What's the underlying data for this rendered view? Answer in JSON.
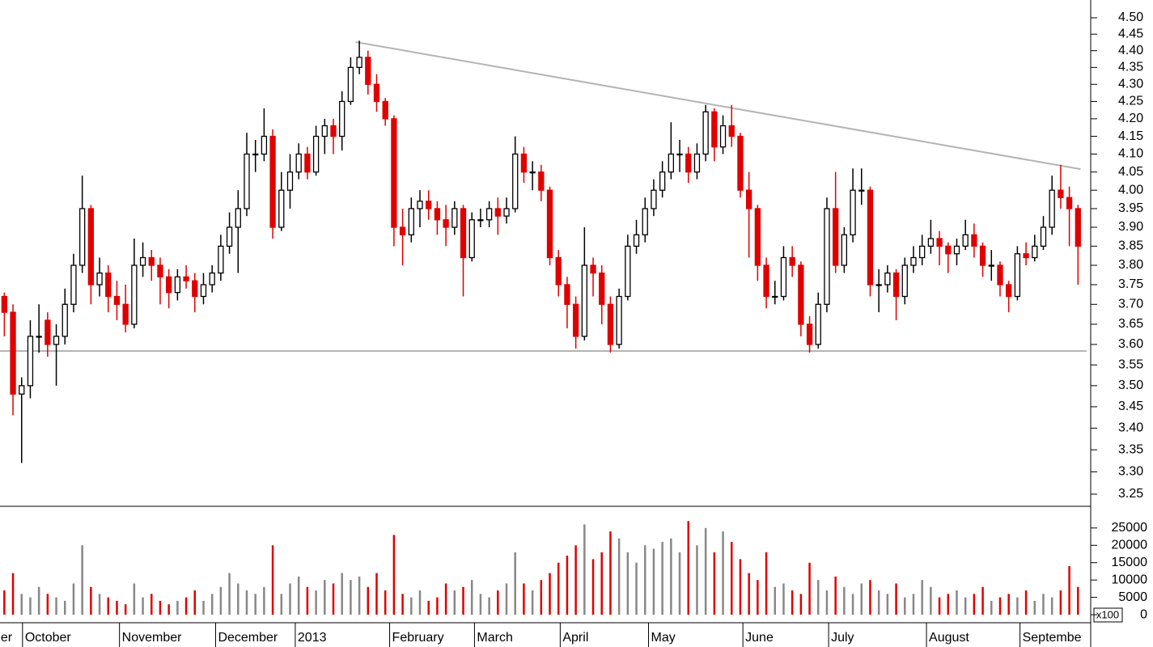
{
  "chart_data": {
    "type": "candlestick",
    "log_y": true,
    "up_color": "#000000",
    "down_color": "#e00000",
    "volume_up_color": "#888888",
    "trend_color": "#b4b4b4",
    "xlim": [
      -0.5,
      125
    ],
    "xticks": [
      {
        "value": -0.7,
        "label": "er"
      },
      {
        "value": 2.1,
        "label": "October"
      },
      {
        "value": 13.3,
        "label": "November"
      },
      {
        "value": 24.4,
        "label": "December"
      },
      {
        "value": 33.6,
        "label": "2013"
      },
      {
        "value": 44.5,
        "label": "February"
      },
      {
        "value": 54.3,
        "label": "March"
      },
      {
        "value": 64.2,
        "label": "April"
      },
      {
        "value": 74.4,
        "label": "May"
      },
      {
        "value": 85.3,
        "label": "June"
      },
      {
        "value": 95.2,
        "label": "July"
      },
      {
        "value": 106.5,
        "label": "August"
      },
      {
        "value": 117.3,
        "label": "Septembe"
      }
    ],
    "ylim": [
      3.225,
      4.555
    ],
    "yticks": [
      {
        "value": 3.25,
        "label": "3.25"
      },
      {
        "value": 3.3,
        "label": "3.30"
      },
      {
        "value": 3.35,
        "label": "3.35"
      },
      {
        "value": 3.4,
        "label": "3.40"
      },
      {
        "value": 3.45,
        "label": "3.45"
      },
      {
        "value": 3.5,
        "label": "3.50"
      },
      {
        "value": 3.55,
        "label": "3.55"
      },
      {
        "value": 3.6,
        "label": "3.60"
      },
      {
        "value": 3.65,
        "label": "3.65"
      },
      {
        "value": 3.7,
        "label": "3.70"
      },
      {
        "value": 3.75,
        "label": "3.75"
      },
      {
        "value": 3.8,
        "label": "3.80"
      },
      {
        "value": 3.85,
        "label": "3.85"
      },
      {
        "value": 3.9,
        "label": "3.90"
      },
      {
        "value": 3.95,
        "label": "3.95"
      },
      {
        "value": 4.0,
        "label": "4.00"
      },
      {
        "value": 4.05,
        "label": "4.05"
      },
      {
        "value": 4.1,
        "label": "4.10"
      },
      {
        "value": 4.15,
        "label": "4.15"
      },
      {
        "value": 4.2,
        "label": "4.20"
      },
      {
        "value": 4.25,
        "label": "4.25"
      },
      {
        "value": 4.3,
        "label": "4.30"
      },
      {
        "value": 4.35,
        "label": "4.35"
      },
      {
        "value": 4.4,
        "label": "4.40"
      },
      {
        "value": 4.45,
        "label": "4.45"
      },
      {
        "value": 4.5,
        "label": "4.50"
      }
    ],
    "volume_ylim": [
      -2315,
      31019
    ],
    "volume_yticks": [
      0,
      5000,
      10000,
      15000,
      20000,
      25000
    ],
    "volume_unit": "x100",
    "trendlines": [
      {
        "x": [
          40.6,
          124.3
        ],
        "y": [
          4.426,
          4.058
        ]
      },
      {
        "x": [
          -0.5,
          125
        ],
        "y": [
          3.584,
          3.584
        ]
      }
    ],
    "ohlc": [
      [
        3.72,
        3.73,
        3.62,
        3.68
      ],
      [
        3.68,
        3.7,
        3.43,
        3.48
      ],
      [
        3.48,
        3.52,
        3.32,
        3.5
      ],
      [
        3.5,
        3.66,
        3.47,
        3.62
      ],
      [
        3.62,
        3.7,
        3.58,
        3.62
      ],
      [
        3.66,
        3.68,
        3.57,
        3.6
      ],
      [
        3.6,
        3.65,
        3.5,
        3.62
      ],
      [
        3.62,
        3.74,
        3.6,
        3.7
      ],
      [
        3.7,
        3.83,
        3.68,
        3.8
      ],
      [
        3.8,
        4.04,
        3.78,
        3.95
      ],
      [
        3.95,
        3.96,
        3.7,
        3.75
      ],
      [
        3.75,
        3.82,
        3.72,
        3.78
      ],
      [
        3.78,
        3.8,
        3.68,
        3.72
      ],
      [
        3.72,
        3.76,
        3.66,
        3.7
      ],
      [
        3.7,
        3.75,
        3.63,
        3.65
      ],
      [
        3.65,
        3.87,
        3.64,
        3.8
      ],
      [
        3.8,
        3.86,
        3.77,
        3.82
      ],
      [
        3.82,
        3.84,
        3.76,
        3.8
      ],
      [
        3.8,
        3.82,
        3.7,
        3.77
      ],
      [
        3.77,
        3.79,
        3.69,
        3.73
      ],
      [
        3.73,
        3.79,
        3.71,
        3.77
      ],
      [
        3.77,
        3.8,
        3.74,
        3.76
      ],
      [
        3.76,
        3.78,
        3.68,
        3.72
      ],
      [
        3.72,
        3.78,
        3.7,
        3.75
      ],
      [
        3.75,
        3.8,
        3.73,
        3.78
      ],
      [
        3.78,
        3.88,
        3.76,
        3.85
      ],
      [
        3.85,
        3.94,
        3.83,
        3.9
      ],
      [
        3.9,
        4.0,
        3.78,
        3.95
      ],
      [
        3.95,
        4.16,
        3.93,
        4.1
      ],
      [
        4.1,
        4.14,
        4.05,
        4.1
      ],
      [
        4.1,
        4.23,
        4.08,
        4.15
      ],
      [
        4.15,
        4.17,
        3.87,
        3.9
      ],
      [
        3.9,
        4.05,
        3.89,
        4.0
      ],
      [
        4.0,
        4.1,
        3.95,
        4.05
      ],
      [
        4.05,
        4.13,
        4.03,
        4.1
      ],
      [
        4.1,
        4.12,
        4.03,
        4.05
      ],
      [
        4.05,
        4.18,
        4.04,
        4.15
      ],
      [
        4.15,
        4.2,
        4.1,
        4.18
      ],
      [
        4.18,
        4.2,
        4.1,
        4.15
      ],
      [
        4.15,
        4.28,
        4.11,
        4.25
      ],
      [
        4.25,
        4.38,
        4.24,
        4.35
      ],
      [
        4.35,
        4.43,
        4.33,
        4.38
      ],
      [
        4.38,
        4.4,
        4.27,
        4.3
      ],
      [
        4.3,
        4.33,
        4.22,
        4.25
      ],
      [
        4.25,
        4.26,
        4.18,
        4.2
      ],
      [
        4.2,
        4.21,
        3.85,
        3.9
      ],
      [
        3.9,
        3.95,
        3.8,
        3.88
      ],
      [
        3.88,
        3.98,
        3.86,
        3.95
      ],
      [
        3.95,
        4.0,
        3.9,
        3.97
      ],
      [
        3.97,
        4.0,
        3.92,
        3.95
      ],
      [
        3.95,
        3.97,
        3.88,
        3.92
      ],
      [
        3.92,
        3.96,
        3.85,
        3.9
      ],
      [
        3.9,
        3.97,
        3.88,
        3.95
      ],
      [
        3.95,
        3.96,
        3.72,
        3.82
      ],
      [
        3.82,
        3.94,
        3.81,
        3.92
      ],
      [
        3.92,
        3.95,
        3.9,
        3.92
      ],
      [
        3.92,
        3.97,
        3.9,
        3.95
      ],
      [
        3.95,
        3.98,
        3.88,
        3.93
      ],
      [
        3.93,
        3.98,
        3.91,
        3.95
      ],
      [
        3.95,
        4.15,
        3.94,
        4.1
      ],
      [
        4.1,
        4.12,
        4.02,
        4.05
      ],
      [
        4.05,
        4.08,
        4.0,
        4.05
      ],
      [
        4.05,
        4.07,
        3.97,
        4.0
      ],
      [
        4.0,
        4.01,
        3.8,
        3.82
      ],
      [
        3.82,
        3.84,
        3.72,
        3.75
      ],
      [
        3.75,
        3.77,
        3.64,
        3.7
      ],
      [
        3.7,
        3.72,
        3.59,
        3.62
      ],
      [
        3.62,
        3.9,
        3.61,
        3.8
      ],
      [
        3.8,
        3.82,
        3.72,
        3.78
      ],
      [
        3.78,
        3.8,
        3.65,
        3.7
      ],
      [
        3.7,
        3.72,
        3.58,
        3.6
      ],
      [
        3.6,
        3.74,
        3.59,
        3.72
      ],
      [
        3.72,
        3.88,
        3.71,
        3.85
      ],
      [
        3.85,
        3.92,
        3.83,
        3.88
      ],
      [
        3.88,
        3.98,
        3.86,
        3.95
      ],
      [
        3.95,
        4.03,
        3.93,
        4.0
      ],
      [
        4.0,
        4.08,
        3.98,
        4.05
      ],
      [
        4.05,
        4.19,
        4.03,
        4.1
      ],
      [
        4.1,
        4.14,
        4.05,
        4.1
      ],
      [
        4.1,
        4.12,
        4.02,
        4.05
      ],
      [
        4.05,
        4.13,
        4.03,
        4.1
      ],
      [
        4.1,
        4.24,
        4.08,
        4.22
      ],
      [
        4.22,
        4.23,
        4.08,
        4.12
      ],
      [
        4.12,
        4.21,
        4.1,
        4.18
      ],
      [
        4.18,
        4.24,
        4.12,
        4.15
      ],
      [
        4.15,
        4.16,
        3.98,
        4.0
      ],
      [
        4.0,
        4.05,
        3.82,
        3.95
      ],
      [
        3.95,
        3.96,
        3.76,
        3.8
      ],
      [
        3.8,
        3.82,
        3.69,
        3.72
      ],
      [
        3.72,
        3.76,
        3.7,
        3.72
      ],
      [
        3.72,
        3.85,
        3.71,
        3.82
      ],
      [
        3.82,
        3.85,
        3.77,
        3.8
      ],
      [
        3.8,
        3.81,
        3.62,
        3.65
      ],
      [
        3.65,
        3.67,
        3.58,
        3.6
      ],
      [
        3.6,
        3.73,
        3.59,
        3.7
      ],
      [
        3.7,
        3.98,
        3.68,
        3.95
      ],
      [
        3.95,
        4.05,
        3.78,
        3.8
      ],
      [
        3.8,
        3.9,
        3.78,
        3.88
      ],
      [
        3.88,
        4.06,
        3.86,
        4.0
      ],
      [
        4.0,
        4.06,
        3.96,
        4.0
      ],
      [
        4.0,
        4.01,
        3.72,
        3.75
      ],
      [
        3.75,
        3.79,
        3.68,
        3.75
      ],
      [
        3.75,
        3.8,
        3.73,
        3.78
      ],
      [
        3.78,
        3.79,
        3.66,
        3.72
      ],
      [
        3.72,
        3.82,
        3.7,
        3.8
      ],
      [
        3.8,
        3.85,
        3.78,
        3.82
      ],
      [
        3.82,
        3.88,
        3.8,
        3.85
      ],
      [
        3.85,
        3.92,
        3.83,
        3.87
      ],
      [
        3.87,
        3.89,
        3.8,
        3.85
      ],
      [
        3.85,
        3.86,
        3.78,
        3.83
      ],
      [
        3.83,
        3.87,
        3.8,
        3.85
      ],
      [
        3.85,
        3.92,
        3.84,
        3.88
      ],
      [
        3.88,
        3.91,
        3.82,
        3.85
      ],
      [
        3.85,
        3.86,
        3.77,
        3.8
      ],
      [
        3.8,
        3.84,
        3.76,
        3.8
      ],
      [
        3.8,
        3.81,
        3.72,
        3.75
      ],
      [
        3.75,
        3.76,
        3.68,
        3.72
      ],
      [
        3.72,
        3.85,
        3.71,
        3.83
      ],
      [
        3.83,
        3.86,
        3.8,
        3.82
      ],
      [
        3.82,
        3.88,
        3.81,
        3.85
      ],
      [
        3.85,
        3.93,
        3.84,
        3.9
      ],
      [
        3.9,
        4.04,
        3.88,
        4.0
      ],
      [
        4.0,
        4.07,
        3.95,
        3.98
      ],
      [
        3.98,
        4.01,
        3.85,
        3.95
      ],
      [
        3.95,
        3.96,
        3.75,
        3.85
      ]
    ],
    "volume": [
      7000,
      12000,
      6000,
      5000,
      8000,
      6000,
      5000,
      4000,
      9000,
      20000,
      8000,
      6000,
      5000,
      4000,
      3000,
      9000,
      5000,
      6000,
      4000,
      3000,
      4000,
      5000,
      7000,
      4000,
      6000,
      8000,
      12000,
      9000,
      7000,
      6000,
      8000,
      20000,
      6000,
      9000,
      11000,
      8000,
      7000,
      10000,
      9000,
      12000,
      10000,
      11000,
      8000,
      12000,
      7000,
      23000,
      6000,
      5000,
      7000,
      4000,
      5000,
      9000,
      7000,
      8000,
      10000,
      6000,
      5000,
      7000,
      9000,
      18000,
      9000,
      7000,
      10000,
      12000,
      15000,
      17000,
      20000,
      26000,
      16000,
      18000,
      24000,
      22000,
      18000,
      15000,
      20000,
      19000,
      21000,
      22000,
      18000,
      27000,
      20000,
      25000,
      18000,
      24000,
      21000,
      16000,
      12000,
      10000,
      18000,
      8000,
      9000,
      7000,
      6000,
      15000,
      10000,
      7000,
      11000,
      8000,
      6000,
      9000,
      10000,
      7000,
      6000,
      9000,
      5000,
      6000,
      10000,
      8000,
      5000,
      6000,
      7000,
      5000,
      6000,
      8000,
      4000,
      5000,
      6000,
      5000,
      7000,
      4000,
      6000,
      5000,
      7000,
      14000,
      8000
    ]
  }
}
